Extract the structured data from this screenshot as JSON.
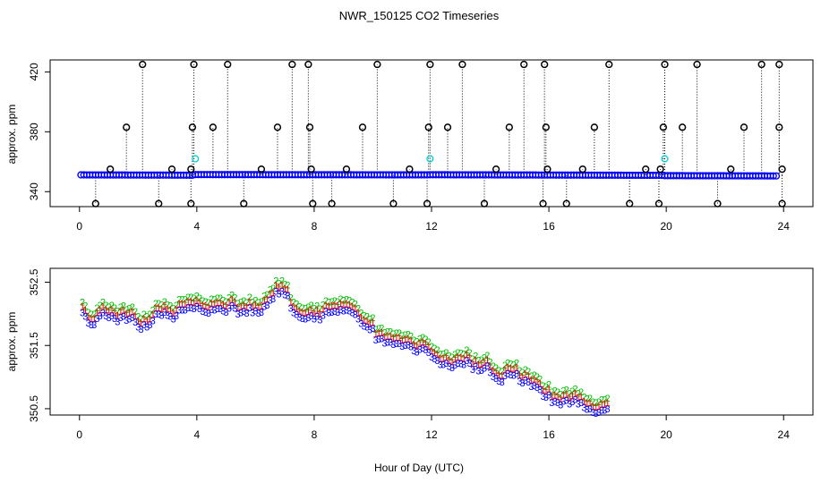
{
  "chart_data": [
    {
      "type": "scatter",
      "title": "NWR_150125  CO2 Timeseries",
      "xlabel": "",
      "ylabel": "approx. ppm",
      "xlim": [
        -1,
        25
      ],
      "ylim": [
        330,
        428
      ],
      "x_ticks": [
        0,
        4,
        8,
        12,
        16,
        20,
        24
      ],
      "y_ticks": [
        340,
        380,
        420
      ],
      "y_tick_labels": [
        "340",
        "380",
        "420"
      ],
      "series": [
        {
          "color": "#0000ff",
          "symbol": "o",
          "segments": [
            {
              "x_start": 0.05,
              "x_end": 3.85,
              "y_start": 351.2,
              "y_end": 351.0
            },
            {
              "x_start": 3.95,
              "x_end": 11.85,
              "y_start": 351.4,
              "y_end": 351.2
            },
            {
              "x_start": 11.95,
              "x_end": 19.85,
              "y_start": 351.3,
              "y_end": 350.9
            },
            {
              "x_start": 19.95,
              "x_end": 23.8,
              "y_start": 350.7,
              "y_end": 350.5
            }
          ]
        },
        {
          "color": "#00d0d0",
          "symbol": "o",
          "points": [
            [
              3.95,
              362.0
            ],
            [
              11.95,
              362.0
            ],
            [
              19.95,
              362.0
            ]
          ]
        },
        {
          "color": "#000000",
          "symbol": "o",
          "high_outliers": [
            [
              2.15,
              425
            ],
            [
              3.9,
              425
            ],
            [
              5.05,
              425
            ],
            [
              7.25,
              425
            ],
            [
              7.8,
              425
            ],
            [
              10.15,
              425
            ],
            [
              11.95,
              425
            ],
            [
              13.05,
              425
            ],
            [
              15.15,
              425
            ],
            [
              15.85,
              425
            ],
            [
              18.05,
              425
            ],
            [
              19.95,
              425
            ],
            [
              21.05,
              425
            ],
            [
              23.25,
              425
            ],
            [
              23.85,
              425
            ],
            [
              1.6,
              383
            ],
            [
              3.85,
              383
            ],
            [
              4.55,
              383
            ],
            [
              6.75,
              383
            ],
            [
              7.85,
              383
            ],
            [
              9.65,
              383
            ],
            [
              11.9,
              383
            ],
            [
              12.55,
              383
            ],
            [
              14.65,
              383
            ],
            [
              15.9,
              383
            ],
            [
              17.55,
              383
            ],
            [
              19.9,
              383
            ],
            [
              20.55,
              383
            ],
            [
              22.65,
              383
            ],
            [
              23.85,
              383
            ],
            [
              1.05,
              355
            ],
            [
              3.15,
              355
            ],
            [
              3.8,
              355
            ],
            [
              6.2,
              355
            ],
            [
              7.9,
              355
            ],
            [
              9.1,
              355
            ],
            [
              11.25,
              355
            ],
            [
              14.2,
              355
            ],
            [
              15.95,
              355
            ],
            [
              17.15,
              355
            ],
            [
              19.3,
              355
            ],
            [
              19.8,
              355
            ],
            [
              22.2,
              355
            ],
            [
              23.95,
              355
            ]
          ],
          "low_outliers": [
            [
              0.55,
              332
            ],
            [
              2.7,
              332
            ],
            [
              3.8,
              332
            ],
            [
              5.6,
              332
            ],
            [
              7.95,
              332
            ],
            [
              8.6,
              332
            ],
            [
              10.7,
              332
            ],
            [
              11.85,
              332
            ],
            [
              13.8,
              332
            ],
            [
              15.8,
              332
            ],
            [
              16.6,
              332
            ],
            [
              18.75,
              332
            ],
            [
              19.75,
              332
            ],
            [
              21.75,
              332
            ],
            [
              23.95,
              332
            ]
          ]
        }
      ]
    },
    {
      "type": "scatter",
      "xlabel": "Hour of Day (UTC)",
      "ylabel": "approx. ppm",
      "xlim": [
        -1,
        25
      ],
      "ylim": [
        350.4,
        352.72
      ],
      "x_ticks": [
        0,
        4,
        8,
        12,
        16,
        20,
        24
      ],
      "y_ticks": [
        350.5,
        351.5,
        352.5
      ],
      "y_tick_labels": [
        "350.5",
        "351.5",
        "352.5"
      ],
      "series": [
        {
          "color": "#0000ff",
          "symbol": "3",
          "x_start": 0.1,
          "x_step": 0.1,
          "offset": 0.0,
          "values": [
            352.02,
            351.96,
            351.86,
            351.83,
            351.83,
            351.93,
            351.97,
            352.02,
            351.97,
            351.94,
            351.97,
            351.93,
            351.88,
            351.94,
            351.96,
            351.9,
            351.92,
            351.94,
            351.87,
            351.79,
            351.76,
            351.83,
            351.79,
            351.83,
            351.89,
            352.0,
            352.0,
            351.98,
            352.03,
            351.98,
            351.96,
            351.92,
            351.97,
            352.06,
            352.06,
            352.06,
            352.1,
            352.1,
            352.08,
            352.12,
            352.08,
            352.04,
            352.03,
            352.01,
            352.07,
            352.06,
            352.08,
            352.08,
            352.05,
            352.03,
            352.09,
            352.13,
            352.09,
            352.0,
            352.02,
            352.04,
            352.01,
            352.1,
            352.02,
            352.05,
            352.01,
            352.03,
            352.12,
            352.14,
            352.22,
            352.24,
            352.36,
            352.32,
            352.36,
            352.3,
            352.29,
            352.09,
            352.02,
            351.99,
            351.95,
            351.93,
            351.92,
            351.94,
            351.97,
            351.92,
            351.96,
            351.91,
            351.98,
            352.04,
            352.02,
            352.03,
            352.04,
            352.03,
            352.07,
            352.05,
            352.06,
            352.05,
            352.02,
            351.99,
            351.92,
            351.85,
            351.81,
            351.79,
            351.75,
            351.77,
            351.59,
            351.6,
            351.61,
            351.54,
            351.55,
            351.55,
            351.52,
            351.53,
            351.53,
            351.49,
            351.5,
            351.51,
            351.48,
            351.42,
            351.4,
            351.44,
            351.46,
            351.43,
            351.39,
            351.32,
            351.29,
            351.26,
            351.2,
            351.2,
            351.22,
            351.17,
            351.15,
            351.19,
            351.22,
            351.21,
            351.2,
            351.26,
            351.22,
            351.12,
            351.17,
            351.1,
            351.11,
            351.14,
            351.18,
            351.07,
            351.01,
            350.98,
            350.94,
            350.92,
            351.02,
            351.06,
            351.04,
            351.03,
            351.06,
            350.94,
            350.91,
            350.95,
            350.92,
            350.85,
            350.87,
            350.84,
            350.8,
            350.7,
            350.68,
            350.72,
            350.6,
            350.62,
            350.6,
            350.56,
            350.62,
            350.63,
            350.58,
            350.61,
            350.65,
            350.58,
            350.6,
            350.52,
            350.49,
            350.5,
            350.44,
            350.43,
            350.44,
            350.48,
            350.48,
            350.5
          ]
        },
        {
          "color": "#ff0000",
          "symbol": "1",
          "x_start": 0.1,
          "x_step": 0.1,
          "offset": 0.1
        },
        {
          "color": "#00c000",
          "symbol": "2",
          "x_start": 0.1,
          "x_step": 0.1,
          "offset": 0.17
        }
      ]
    }
  ]
}
